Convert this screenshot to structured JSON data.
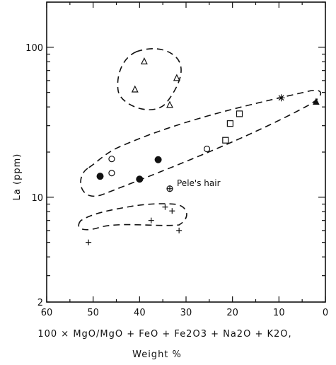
{
  "chart_data": {
    "type": "scatter",
    "ylabel": "La (ppm)",
    "xlabel_line1": "100 × MgO/MgO + FeO + Fe2O3 + Na2O + K2O,",
    "xlabel_line2": "Weight %",
    "x_range": [
      60,
      0
    ],
    "x_reversed": true,
    "y_range": [
      2,
      200
    ],
    "y_scale": "log",
    "x_ticks": [
      "60",
      "50",
      "40",
      "30",
      "20",
      "10",
      "0"
    ],
    "x_tick_values": [
      60,
      50,
      40,
      30,
      20,
      10,
      0
    ],
    "y_ticks": [
      "2",
      "10",
      "100"
    ],
    "y_tick_values": [
      2,
      10,
      100
    ],
    "grid": false,
    "series": [
      {
        "marker": "triangle-open",
        "points": [
          [
            39,
            80
          ],
          [
            41,
            52
          ],
          [
            32,
            62
          ],
          [
            33.5,
            41
          ]
        ]
      },
      {
        "marker": "circle-open",
        "points": [
          [
            46,
            18
          ],
          [
            46,
            14.5
          ],
          [
            25.5,
            21
          ]
        ]
      },
      {
        "marker": "circle-filled",
        "points": [
          [
            48.5,
            13.8
          ],
          [
            40,
            13.2
          ],
          [
            36,
            17.8
          ]
        ]
      },
      {
        "marker": "circle-cross",
        "points": [
          [
            33.5,
            11.4
          ]
        ]
      },
      {
        "marker": "square-open",
        "points": [
          [
            21.5,
            24
          ],
          [
            20.5,
            31
          ],
          [
            18.5,
            36
          ]
        ]
      },
      {
        "marker": "asterisk",
        "points": [
          [
            9.5,
            46
          ]
        ]
      },
      {
        "marker": "triangle-filled",
        "points": [
          [
            2,
            43
          ]
        ]
      },
      {
        "marker": "plus",
        "points": [
          [
            51,
            5
          ],
          [
            37.5,
            7
          ],
          [
            34.5,
            8.6
          ],
          [
            33,
            8.1
          ],
          [
            31.5,
            6
          ]
        ]
      }
    ],
    "annotations": [
      {
        "text": "Pele's hair",
        "x": 33.5,
        "y": 11.4
      }
    ]
  }
}
